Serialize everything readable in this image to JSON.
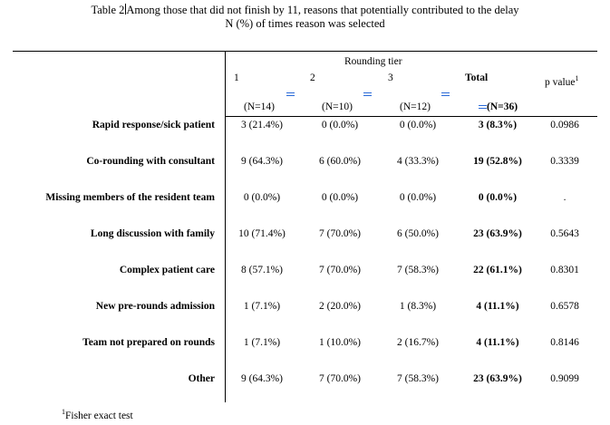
{
  "title": {
    "prefix": "Table 2",
    "text": "Among those that did not finish by 11, reasons that potentially contributed to the delay",
    "subtitle": "N (%) of times reason was selected"
  },
  "header": {
    "group_label": "Rounding tier",
    "tiers": [
      "1",
      "2",
      "3"
    ],
    "total_label": "Total",
    "pvalue_label": "p value",
    "pvalue_sup": "1",
    "n_labels": [
      "(N=14)",
      "(N=10)",
      "(N=12)",
      "(N=36)"
    ]
  },
  "rows": [
    {
      "label": "Rapid response/sick patient",
      "t1": "3 (21.4%)",
      "t2": "0 (0.0%)",
      "t3": "0 (0.0%)",
      "total": "3 (8.3%)",
      "p": "0.0986"
    },
    {
      "label": "Co-rounding with consultant",
      "t1": "9 (64.3%)",
      "t2": "6 (60.0%)",
      "t3": "4 (33.3%)",
      "total": "19 (52.8%)",
      "p": "0.3339"
    },
    {
      "label": "Missing members of the resident team",
      "t1": "0 (0.0%)",
      "t2": "0 (0.0%)",
      "t3": "0 (0.0%)",
      "total": "0 (0.0%)",
      "p": "."
    },
    {
      "label": "Long discussion with family",
      "t1": "10 (71.4%)",
      "t2": "7 (70.0%)",
      "t3": "6 (50.0%)",
      "total": "23 (63.9%)",
      "p": "0.5643"
    },
    {
      "label": "Complex patient care",
      "t1": "8 (57.1%)",
      "t2": "7 (70.0%)",
      "t3": "7 (58.3%)",
      "total": "22 (61.1%)",
      "p": "0.8301"
    },
    {
      "label": "New pre-rounds admission",
      "t1": "1 (7.1%)",
      "t2": "2 (20.0%)",
      "t3": "1 (8.3%)",
      "total": "4 (11.1%)",
      "p": "0.6578"
    },
    {
      "label": "Team not prepared on rounds",
      "t1": "1 (7.1%)",
      "t2": "1 (10.0%)",
      "t3": "2 (16.7%)",
      "total": "4 (11.1%)",
      "p": "0.8146"
    },
    {
      "label": "Other",
      "t1": "9 (64.3%)",
      "t2": "7 (70.0%)",
      "t3": "7 (58.3%)",
      "total": "23 (63.9%)",
      "p": "0.9099"
    }
  ],
  "footnote": {
    "sup": "1",
    "text": "Fisher exact test"
  }
}
